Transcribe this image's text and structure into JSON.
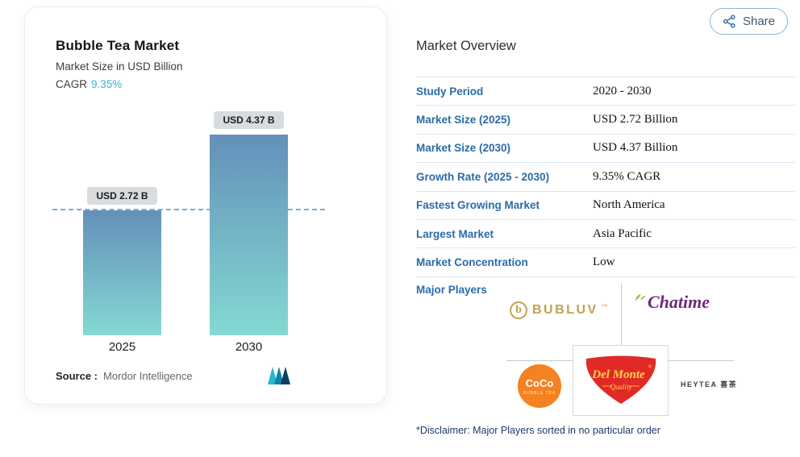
{
  "chart_card": {
    "title": "Bubble Tea Market",
    "subtitle": "Market Size in USD Billion",
    "cagr_label": "CAGR",
    "cagr_value": "9.35%",
    "source_label": "Source :",
    "source_value": "Mordor Intelligence"
  },
  "chart_data": {
    "type": "bar",
    "title": "Bubble Tea Market",
    "ylabel": "Market Size in USD Billion",
    "categories": [
      "2025",
      "2030"
    ],
    "values": [
      2.72,
      4.37
    ],
    "bar_labels": [
      "USD 2.72 B",
      "USD 4.37 B"
    ],
    "unit": "USD Billion",
    "cagr": "9.35%",
    "ylim": [
      0,
      4.9
    ],
    "grid": false,
    "reference_line_value": 2.72,
    "reference_line_color": "#7fa9d9",
    "bar_gradient_top": "#6390b9",
    "bar_gradient_bottom": "#84d9d2"
  },
  "share": {
    "label": "Share"
  },
  "overview": {
    "title": "Market Overview",
    "rows": [
      {
        "label": "Study Period",
        "value": "2020 - 2030"
      },
      {
        "label": "Market Size (2025)",
        "value": "USD 2.72 Billion"
      },
      {
        "label": "Market Size (2030)",
        "value": "USD 4.37 Billion"
      },
      {
        "label": "Growth Rate (2025 - 2030)",
        "value": "9.35% CAGR"
      },
      {
        "label": "Fastest Growing Market",
        "value": "North America"
      },
      {
        "label": "Largest Market",
        "value": "Asia Pacific"
      },
      {
        "label": "Market Concentration",
        "value": "Low"
      }
    ],
    "major_players_label": "Major Players",
    "disclaimer": "*Disclaimer: Major Players sorted in no particular order"
  },
  "players": {
    "bubluv": {
      "name": "BUBLUV",
      "icon_letter": "b",
      "tm": "™"
    },
    "chatime": {
      "name": "Chatime"
    },
    "coco": {
      "name": "CoCo",
      "sub": "BUBBLE TEA"
    },
    "delmonte": {
      "name": "Del Monte",
      "reg": "®",
      "sub": "Quality"
    },
    "heytea": {
      "name": "HEYTEA 喜茶"
    }
  },
  "colors": {
    "label_blue": "#2a6ba8",
    "cagr_teal": "#36b3c9",
    "table_divider": "#d9e7f6",
    "bubluv_gold": "#bfa24f",
    "chatime_purple": "#6d2a7e",
    "chatime_green": "#78be43",
    "coco_orange": "#f58220",
    "delmonte_red": "#e12a26",
    "delmonte_yellow": "#ffd24f"
  }
}
